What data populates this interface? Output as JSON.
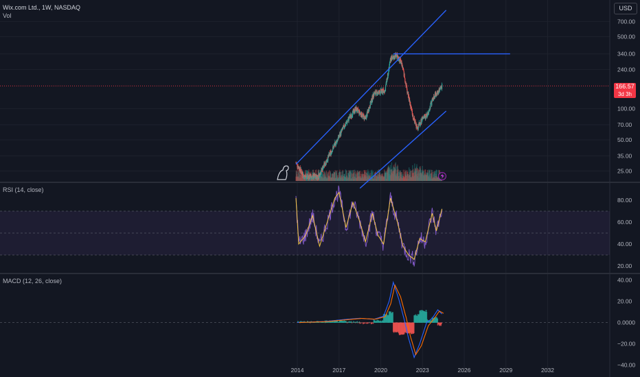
{
  "header": {
    "symbol": "Wix.com Ltd., 1W, NASDAQ",
    "volume_label": "Vol",
    "currency_button": "USD"
  },
  "price_tag": {
    "price": "166.57",
    "countdown": "3d 3h"
  },
  "colors": {
    "background": "#131722",
    "up": "#26a69a",
    "down": "#ef5350",
    "trendline": "#2962ff",
    "rsi": "#7e57c2",
    "rsi_ma": "#f5c842",
    "macd": "#2962ff",
    "signal": "#ff6d00",
    "price_line": "#f23645"
  },
  "chart_data": [
    {
      "type": "candlestick",
      "scale": "log",
      "x_ticks": [
        "2014",
        "2017",
        "2020",
        "2023",
        "2026",
        "2029",
        "2032"
      ],
      "y_ticks": [
        "700.00",
        "500.00",
        "340.00",
        "240.00",
        "166.57",
        "100.00",
        "70.00",
        "50.00",
        "35.00",
        "25.00"
      ],
      "ylim": [
        20,
        1000
      ],
      "last_price": 166.57,
      "approx_price_path": [
        {
          "x": 2013.9,
          "y": 30
        },
        {
          "x": 2014.5,
          "y": 22
        },
        {
          "x": 2015.5,
          "y": 22
        },
        {
          "x": 2016.5,
          "y": 40
        },
        {
          "x": 2017.3,
          "y": 65
        },
        {
          "x": 2017.7,
          "y": 80
        },
        {
          "x": 2018.2,
          "y": 100
        },
        {
          "x": 2018.9,
          "y": 80
        },
        {
          "x": 2019.5,
          "y": 140
        },
        {
          "x": 2020.3,
          "y": 150
        },
        {
          "x": 2020.7,
          "y": 300
        },
        {
          "x": 2021.1,
          "y": 330
        },
        {
          "x": 2021.5,
          "y": 280
        },
        {
          "x": 2021.9,
          "y": 150
        },
        {
          "x": 2022.3,
          "y": 85
        },
        {
          "x": 2022.6,
          "y": 65
        },
        {
          "x": 2023.0,
          "y": 80
        },
        {
          "x": 2023.3,
          "y": 85
        },
        {
          "x": 2023.8,
          "y": 130
        },
        {
          "x": 2024.1,
          "y": 145
        },
        {
          "x": 2024.4,
          "y": 166.57
        }
      ]
    },
    {
      "type": "line",
      "title": "RSI (14, close)",
      "y_ticks": [
        "80.00",
        "60.00",
        "40.00",
        "20.00"
      ],
      "ylim": [
        15,
        95
      ],
      "band": [
        30,
        70
      ],
      "series": [
        {
          "name": "RSI",
          "values": [
            {
              "x": 2013.9,
              "y": 82
            },
            {
              "x": 2014.1,
              "y": 40
            },
            {
              "x": 2014.6,
              "y": 48
            },
            {
              "x": 2015.1,
              "y": 66
            },
            {
              "x": 2015.6,
              "y": 38
            },
            {
              "x": 2016.2,
              "y": 62
            },
            {
              "x": 2016.7,
              "y": 82
            },
            {
              "x": 2017.0,
              "y": 87
            },
            {
              "x": 2017.5,
              "y": 55
            },
            {
              "x": 2018.0,
              "y": 78
            },
            {
              "x": 2018.5,
              "y": 60
            },
            {
              "x": 2018.9,
              "y": 42
            },
            {
              "x": 2019.4,
              "y": 68
            },
            {
              "x": 2019.8,
              "y": 48
            },
            {
              "x": 2020.2,
              "y": 40
            },
            {
              "x": 2020.7,
              "y": 82
            },
            {
              "x": 2021.2,
              "y": 60
            },
            {
              "x": 2021.6,
              "y": 38
            },
            {
              "x": 2022.0,
              "y": 30
            },
            {
              "x": 2022.4,
              "y": 26
            },
            {
              "x": 2022.8,
              "y": 45
            },
            {
              "x": 2023.2,
              "y": 42
            },
            {
              "x": 2023.7,
              "y": 68
            },
            {
              "x": 2024.0,
              "y": 52
            },
            {
              "x": 2024.4,
              "y": 72
            }
          ]
        }
      ]
    },
    {
      "type": "line",
      "title": "MACD (12, 26, close)",
      "y_ticks": [
        "40.00",
        "20.00",
        "0.0000",
        "−20.00",
        "−40.00"
      ],
      "ylim": [
        -45,
        45
      ],
      "series": [
        {
          "name": "MACD",
          "values": [
            {
              "x": 2014.0,
              "y": 0
            },
            {
              "x": 2016.0,
              "y": 1
            },
            {
              "x": 2017.5,
              "y": 3
            },
            {
              "x": 2018.5,
              "y": 4
            },
            {
              "x": 2019.5,
              "y": 3
            },
            {
              "x": 2020.2,
              "y": 6
            },
            {
              "x": 2020.6,
              "y": 20
            },
            {
              "x": 2020.9,
              "y": 38
            },
            {
              "x": 2021.3,
              "y": 22
            },
            {
              "x": 2021.7,
              "y": 2
            },
            {
              "x": 2022.0,
              "y": -15
            },
            {
              "x": 2022.4,
              "y": -33
            },
            {
              "x": 2022.8,
              "y": -20
            },
            {
              "x": 2023.3,
              "y": 0
            },
            {
              "x": 2023.7,
              "y": 4
            },
            {
              "x": 2024.1,
              "y": 12
            },
            {
              "x": 2024.4,
              "y": 8
            }
          ]
        }
      ]
    }
  ]
}
